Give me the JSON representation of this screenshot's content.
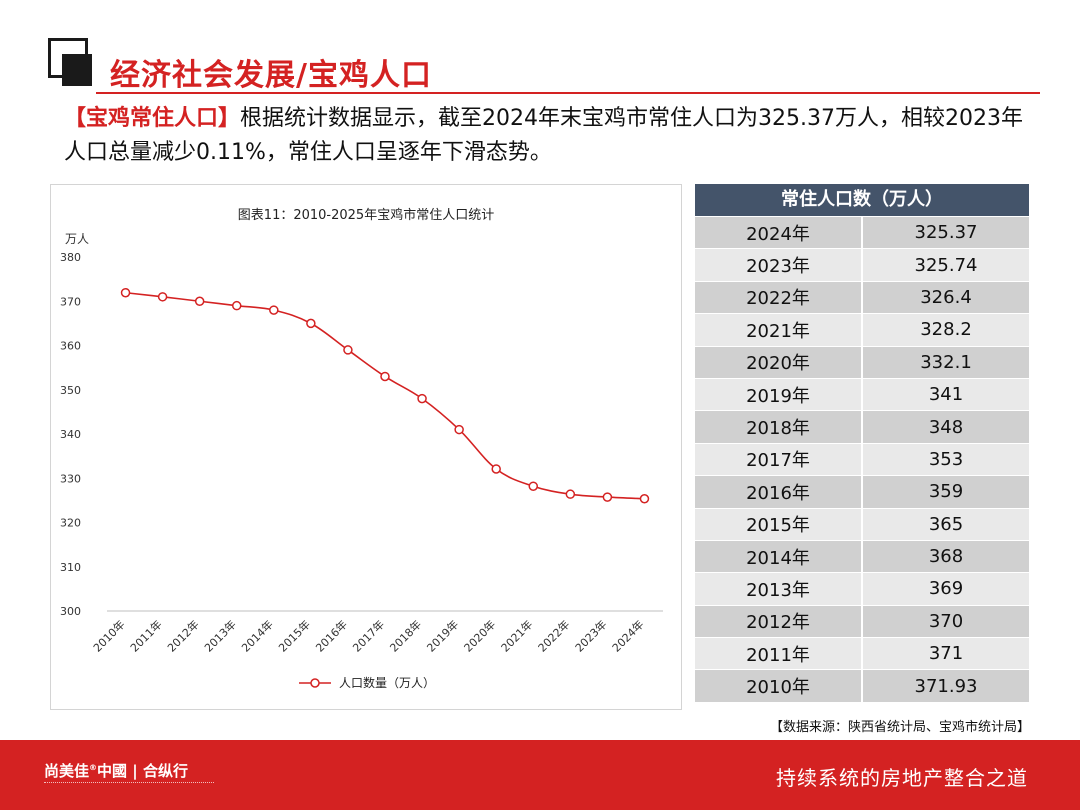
{
  "header": {
    "title": "经济社会发展/宝鸡人口"
  },
  "intro": {
    "highlight": "【宝鸡常住人口】",
    "text": "根据统计数据显示，截至2024年末宝鸡市常住人口为325.37万人，相较2023年人口总量减少0.11%，常住人口呈逐年下滑态势。"
  },
  "chart_data": {
    "type": "line",
    "title": "图表11：2010-2025年宝鸡市常住人口统计",
    "ylabel": "万人",
    "xlabel": "",
    "ylim": [
      300,
      380
    ],
    "yticks": [
      300,
      310,
      320,
      330,
      340,
      350,
      360,
      370,
      380
    ],
    "categories": [
      "2010年",
      "2011年",
      "2012年",
      "2013年",
      "2014年",
      "2015年",
      "2016年",
      "2017年",
      "2018年",
      "2019年",
      "2020年",
      "2021年",
      "2022年",
      "2023年",
      "2024年"
    ],
    "series": [
      {
        "name": "人口数量（万人）",
        "values": [
          371.93,
          371,
          370,
          369,
          368,
          365,
          359,
          353,
          348,
          341,
          332.1,
          328.2,
          326.4,
          325.74,
          325.37
        ]
      }
    ],
    "grid": false,
    "legend": "bottom",
    "color": "#d42222"
  },
  "table": {
    "header": "常住人口数（万人）",
    "rows": [
      {
        "year": "2024年",
        "value": "325.37"
      },
      {
        "year": "2023年",
        "value": "325.74"
      },
      {
        "year": "2022年",
        "value": "326.4"
      },
      {
        "year": "2021年",
        "value": "328.2"
      },
      {
        "year": "2020年",
        "value": "332.1"
      },
      {
        "year": "2019年",
        "value": "341"
      },
      {
        "year": "2018年",
        "value": "348"
      },
      {
        "year": "2017年",
        "value": "353"
      },
      {
        "year": "2016年",
        "value": "359"
      },
      {
        "year": "2015年",
        "value": "365"
      },
      {
        "year": "2014年",
        "value": "368"
      },
      {
        "year": "2013年",
        "value": "369"
      },
      {
        "year": "2012年",
        "value": "370"
      },
      {
        "year": "2011年",
        "value": "371"
      },
      {
        "year": "2010年",
        "value": "371.93"
      }
    ]
  },
  "source": "【数据来源：陕西省统计局、宝鸡市统计局】",
  "footer": {
    "brand": "尚美佳",
    "brand_mark": "®",
    "brand_country": "中國",
    "brand_partner": "合纵行",
    "slogan": "持续系统的房地产整合之道"
  }
}
